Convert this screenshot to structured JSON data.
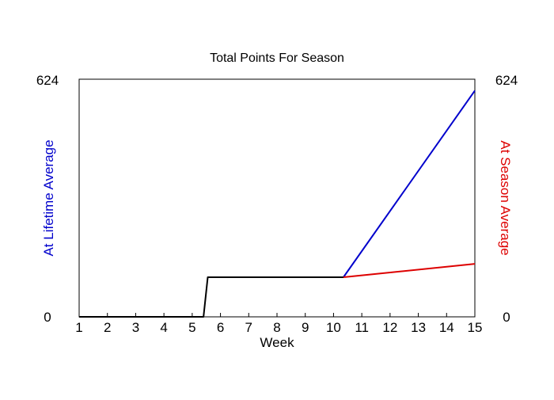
{
  "chart_data": {
    "type": "line",
    "title": "Total Points For Season",
    "xlabel": "Week",
    "ylabel_left": "At Lifetime Average",
    "ylabel_right": "At Season Average",
    "xlim": [
      1,
      15
    ],
    "ylim": [
      0,
      624
    ],
    "x_ticks": [
      1,
      2,
      3,
      4,
      5,
      6,
      7,
      8,
      9,
      10,
      11,
      12,
      13,
      14,
      15
    ],
    "y_tick_labels": {
      "left_min": "0",
      "left_max": "624",
      "right_min": "0",
      "right_max": "624"
    },
    "grid": false,
    "colors": {
      "actual": "#000000",
      "lifetime": "#0000cc",
      "season": "#dd0000",
      "lifetime_label": "#0000cc",
      "season_label": "#dd0000",
      "axis": "#000000",
      "background": "#ffffff"
    },
    "series": [
      {
        "role": "actual",
        "x": [
          1,
          5.4,
          5.55,
          10.35
        ],
        "y": [
          0,
          0,
          104,
          104
        ]
      },
      {
        "role": "lifetime",
        "x": [
          10.35,
          15
        ],
        "y": [
          104,
          594
        ]
      },
      {
        "role": "season",
        "x": [
          10.35,
          15
        ],
        "y": [
          104,
          139
        ]
      }
    ]
  }
}
